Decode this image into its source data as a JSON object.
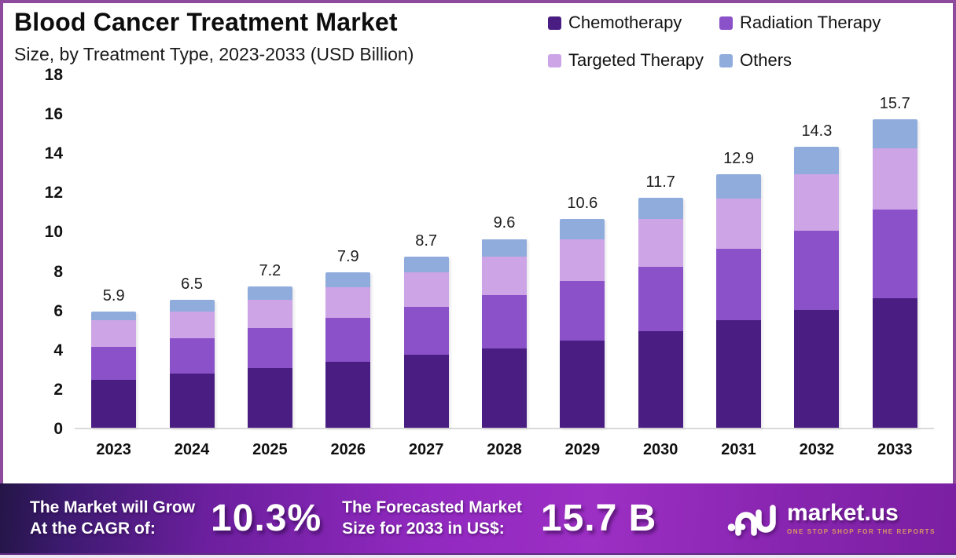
{
  "header": {
    "title": "Blood Cancer Treatment Market",
    "subtitle": "Size, by Treatment Type, 2023-2033 (USD Billion)"
  },
  "legend": {
    "items": [
      {
        "label": "Chemotherapy",
        "color": "#4A1D82"
      },
      {
        "label": "Radiation Therapy",
        "color": "#8B51C9"
      },
      {
        "label": "Targeted Therapy",
        "color": "#CDA4E5"
      },
      {
        "label": "Others",
        "color": "#8FACDC"
      }
    ]
  },
  "chart_data": {
    "type": "bar",
    "stacked": true,
    "title": "Blood Cancer Treatment Market Size, by Treatment Type, 2023-2033 (USD Billion)",
    "categories": [
      "2023",
      "2024",
      "2025",
      "2026",
      "2027",
      "2028",
      "2029",
      "2030",
      "2031",
      "2032",
      "2033"
    ],
    "series": [
      {
        "name": "Chemotherapy",
        "color": "#4A1D82",
        "values": [
          2.45,
          2.75,
          3.05,
          3.35,
          3.7,
          4.05,
          4.45,
          4.9,
          5.45,
          6.0,
          6.6
        ]
      },
      {
        "name": "Radiation Therapy",
        "color": "#8B51C9",
        "values": [
          1.65,
          1.8,
          2.0,
          2.25,
          2.45,
          2.7,
          3.0,
          3.3,
          3.65,
          4.0,
          4.5
        ]
      },
      {
        "name": "Targeted Therapy",
        "color": "#CDA4E5",
        "values": [
          1.35,
          1.35,
          1.45,
          1.55,
          1.75,
          1.95,
          2.15,
          2.4,
          2.55,
          2.9,
          3.1
        ]
      },
      {
        "name": "Others",
        "color": "#8FACDC",
        "values": [
          0.45,
          0.6,
          0.7,
          0.75,
          0.8,
          0.9,
          1.0,
          1.1,
          1.25,
          1.4,
          1.5
        ]
      }
    ],
    "totals": [
      "5.9",
      "6.5",
      "7.2",
      "7.9",
      "8.7",
      "9.6",
      "10.6",
      "11.7",
      "12.9",
      "14.3",
      "15.7"
    ],
    "xlabel": "",
    "ylabel": "",
    "ylim": [
      0,
      18
    ],
    "ytick_step": 2,
    "grid": false,
    "legend_position": "top-right",
    "accent_colors": {
      "frame": "#8E4B9E",
      "axis_line": "#DADADA"
    }
  },
  "footer": {
    "cagr_label_line1": "The Market will Grow",
    "cagr_label_line2": "At the CAGR of:",
    "cagr_value": "10.3%",
    "forecast_label_line1": "The Forecasted Market",
    "forecast_label_line2": "Size for 2033 in US$:",
    "forecast_value": "15.7 B",
    "brand": {
      "name": "market.us",
      "tagline": "ONE STOP SHOP FOR THE REPORTS"
    }
  }
}
